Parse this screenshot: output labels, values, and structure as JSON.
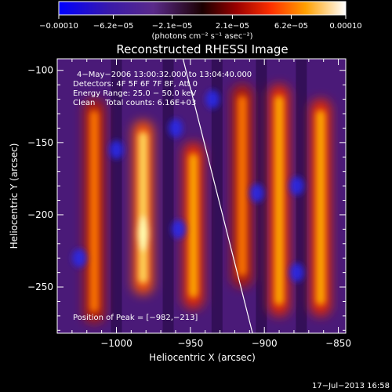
{
  "chart_data": {
    "type": "heatmap",
    "title": "Reconstructed RHESSI Image",
    "xlabel": "Heliocentric X (arcsec)",
    "ylabel": "Heliocentric Y (arcsec)",
    "xlim": [
      -1040,
      -845
    ],
    "ylim": [
      -282,
      -92
    ],
    "xticks": [
      -1000,
      -950,
      -900,
      -850
    ],
    "xtick_labels": [
      "−1000",
      "−950",
      "−900",
      "−850"
    ],
    "yticks": [
      -100,
      -150,
      -200,
      -250
    ],
    "ytick_labels": [
      "−100",
      "−150",
      "−200",
      "−250"
    ],
    "colorbar": {
      "range": [
        -0.0001,
        0.0001
      ],
      "tick_values": [
        -0.0001,
        -6.2e-05,
        -2.1e-05,
        2.1e-05,
        6.2e-05,
        0.0001
      ],
      "tick_labels": [
        "−0.00010",
        "−6.2e−05",
        "−2.1e−05",
        "2.1e−05",
        "6.2e−05",
        "0.00010"
      ],
      "units": "(photons cm⁻² s⁻¹ asec⁻²)"
    },
    "info_lines": [
      "4−May−2006 13:00:32.000 to 13:04:40.000",
      "Detectors: 4F 5F 6F 7F 8F, Att 0",
      "Energy Range: 25.0 − 50.0 keV",
      "Clean    Total counts: 6.16E+03"
    ],
    "peak_label": "Position of Peak = [−982,−213]",
    "peak": [
      -982,
      -213
    ],
    "limb_line": [
      [
        -955,
        -92
      ],
      [
        -908,
        -282
      ]
    ],
    "bright_ridges": [
      {
        "x": -1015,
        "y_from": -120,
        "y_to": -275,
        "level": 0.55
      },
      {
        "x": -982,
        "y_from": -135,
        "y_to": -255,
        "level": 1.0
      },
      {
        "x": -948,
        "y_from": -150,
        "y_to": -265,
        "level": 0.7
      },
      {
        "x": -915,
        "y_from": -110,
        "y_to": -250,
        "level": 0.6
      },
      {
        "x": -890,
        "y_from": -110,
        "y_to": -270,
        "level": 0.65
      },
      {
        "x": -862,
        "y_from": -120,
        "y_to": -270,
        "level": 0.65
      }
    ],
    "negative_spots": [
      {
        "x": -1000,
        "y": -155
      },
      {
        "x": -958,
        "y": -210
      },
      {
        "x": -935,
        "y": -120
      },
      {
        "x": -905,
        "y": -185
      },
      {
        "x": -878,
        "y": -180
      },
      {
        "x": -878,
        "y": -240
      },
      {
        "x": -1025,
        "y": -230
      },
      {
        "x": -960,
        "y": -140
      }
    ]
  },
  "footer": {
    "date": "17−Jul−2013 16:58"
  }
}
